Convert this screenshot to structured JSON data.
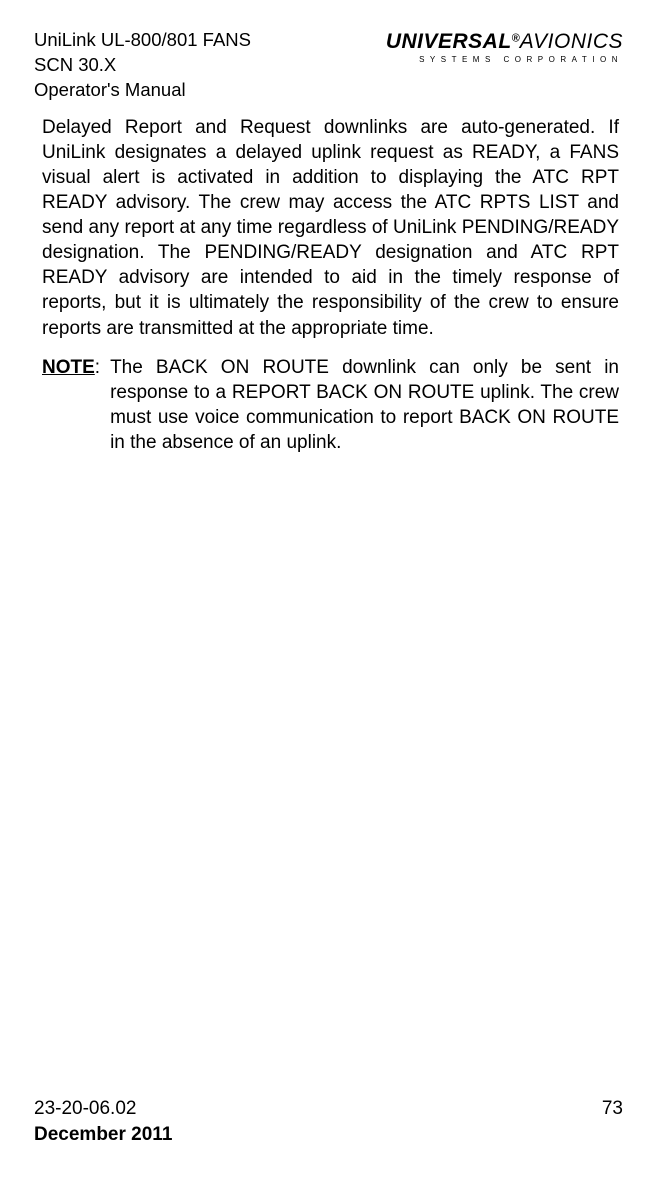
{
  "header": {
    "product": "UniLink UL-800/801 FANS",
    "scn": "SCN 30.X",
    "manual": "Operator's Manual",
    "brand_main": "UNIVERSAL",
    "brand_sub": "AVIONICS",
    "brand_tag": "SYSTEMS CORPORATION"
  },
  "body": {
    "para1": "Delayed Report and Request downlinks are auto-generated. If UniLink designates a delayed uplink request as READY, a FANS visual alert is activated in addition to displaying the ATC RPT READY advisory. The crew may access the ATC RPTS LIST and send any report at any time regardless of UniLink PENDING/READY designation. The PENDING/READY designation and ATC RPT READY advisory are intended to aid in the timely response of reports, but it is ultimately the responsibility of the crew to ensure reports are transmitted at the appropriate time.",
    "note_label": "NOTE",
    "note_text": "The BACK ON ROUTE downlink can only be sent in response to a REPORT BACK ON ROUTE uplink. The crew must use voice communication to report BACK ON ROUTE in the absence of an uplink."
  },
  "footer": {
    "docnum": "23-20-06.02",
    "page": "73",
    "date": "December 2011"
  }
}
